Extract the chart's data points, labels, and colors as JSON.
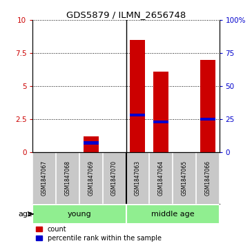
{
  "title": "GDS5879 / ILMN_2656748",
  "samples": [
    "GSM1847067",
    "GSM1847068",
    "GSM1847069",
    "GSM1847070",
    "GSM1847063",
    "GSM1847064",
    "GSM1847065",
    "GSM1847066"
  ],
  "counts": [
    0,
    0,
    1.2,
    0,
    8.5,
    6.1,
    0,
    7.0
  ],
  "percentiles": [
    0,
    0,
    7,
    0,
    28,
    23,
    0,
    25
  ],
  "groups": [
    {
      "label": "young",
      "start": 0,
      "end": 4
    },
    {
      "label": "middle age",
      "start": 4,
      "end": 8
    }
  ],
  "group_divider": 4,
  "ylim_left": [
    0,
    10
  ],
  "ylim_right": [
    0,
    100
  ],
  "yticks_left": [
    0,
    2.5,
    5,
    7.5,
    10
  ],
  "yticks_right": [
    0,
    25,
    50,
    75,
    100
  ],
  "ytick_labels_left": [
    "0",
    "2.5",
    "5",
    "7.5",
    "10"
  ],
  "ytick_labels_right": [
    "0",
    "25",
    "50",
    "75",
    "100%"
  ],
  "bar_color": "#cc0000",
  "percentile_color": "#0000cc",
  "bar_width": 0.65,
  "background_color": "#ffffff",
  "plot_bg_color": "#ffffff",
  "label_area_color": "#c8c8c8",
  "group_area_color": "#90ee90",
  "legend_count": "count",
  "legend_percentile": "percentile rank within the sample"
}
